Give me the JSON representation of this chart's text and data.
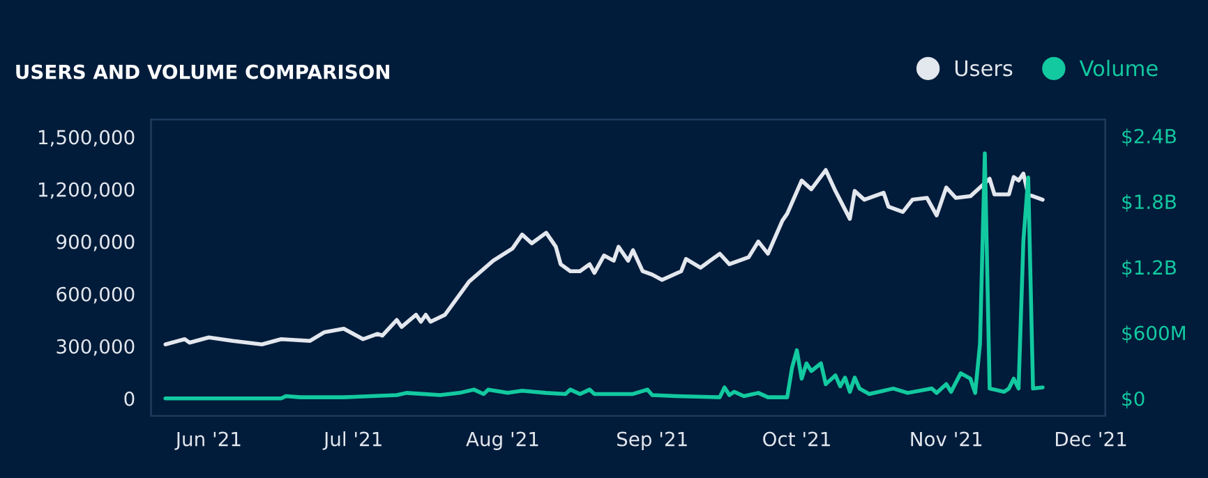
{
  "chart_data": {
    "type": "line",
    "title": "USERS AND VOLUME COMPARISON",
    "xlim": [
      "2021-05-20",
      "2021-12-04"
    ],
    "xticks": [
      {
        "value": "2021-06-01",
        "label": "Jun '21"
      },
      {
        "value": "2021-07-01",
        "label": "Jul '21"
      },
      {
        "value": "2021-08-01",
        "label": "Aug '21"
      },
      {
        "value": "2021-09-01",
        "label": "Sep '21"
      },
      {
        "value": "2021-10-01",
        "label": "Oct '21"
      },
      {
        "value": "2021-11-01",
        "label": "Nov '21"
      },
      {
        "value": "2021-12-01",
        "label": "Dec '21"
      }
    ],
    "ylim": [
      -100000,
      1600000
    ],
    "yticks": [
      {
        "value": 0,
        "label": "0"
      },
      {
        "value": 300000,
        "label": "300,000"
      },
      {
        "value": 600000,
        "label": "600,000"
      },
      {
        "value": 900000,
        "label": "900,000"
      },
      {
        "value": 1200000,
        "label": "1,200,000"
      },
      {
        "value": 1500000,
        "label": "1,500,000"
      }
    ],
    "y2lim": [
      -160000000,
      2550000000
    ],
    "y2ticks": [
      {
        "value": 0,
        "label": "$0"
      },
      {
        "value": 600000000,
        "label": "$600M"
      },
      {
        "value": 1200000000,
        "label": "$1.2B"
      },
      {
        "value": 1800000000,
        "label": "$1.8B"
      },
      {
        "value": 2400000000,
        "label": "$2.4B"
      }
    ],
    "grid": false,
    "legend": "top right",
    "marker": "none",
    "line_style": "solid",
    "series": [
      {
        "name": "Users",
        "color": "#e3e7ee",
        "axis": "y",
        "x": [
          "2021-05-23",
          "2021-05-27",
          "2021-05-28",
          "2021-06-01",
          "2021-06-06",
          "2021-06-12",
          "2021-06-16",
          "2021-06-22",
          "2021-06-25",
          "2021-06-29",
          "2021-07-03",
          "2021-07-06",
          "2021-07-07",
          "2021-07-10",
          "2021-07-11",
          "2021-07-14",
          "2021-07-15",
          "2021-07-16",
          "2021-07-17",
          "2021-07-20",
          "2021-07-25",
          "2021-07-30",
          "2021-08-03",
          "2021-08-05",
          "2021-08-07",
          "2021-08-10",
          "2021-08-12",
          "2021-08-13",
          "2021-08-15",
          "2021-08-17",
          "2021-08-19",
          "2021-08-20",
          "2021-08-22",
          "2021-08-24",
          "2021-08-25",
          "2021-08-27",
          "2021-08-28",
          "2021-08-30",
          "2021-09-01",
          "2021-09-03",
          "2021-09-07",
          "2021-09-08",
          "2021-09-11",
          "2021-09-15",
          "2021-09-17",
          "2021-09-21",
          "2021-09-23",
          "2021-09-25",
          "2021-09-28",
          "2021-09-29",
          "2021-10-02",
          "2021-10-04",
          "2021-10-07",
          "2021-10-09",
          "2021-10-12",
          "2021-10-13",
          "2021-10-15",
          "2021-10-19",
          "2021-10-20",
          "2021-10-23",
          "2021-10-25",
          "2021-10-28",
          "2021-10-30",
          "2021-11-01",
          "2021-11-03",
          "2021-11-06",
          "2021-11-10",
          "2021-11-11",
          "2021-11-14",
          "2021-11-15",
          "2021-11-16",
          "2021-11-17",
          "2021-11-18",
          "2021-11-21"
        ],
        "values": [
          310000,
          340000,
          320000,
          350000,
          330000,
          310000,
          340000,
          330000,
          380000,
          400000,
          340000,
          370000,
          360000,
          450000,
          410000,
          480000,
          440000,
          480000,
          440000,
          480000,
          670000,
          790000,
          860000,
          940000,
          890000,
          950000,
          870000,
          770000,
          730000,
          730000,
          770000,
          720000,
          820000,
          790000,
          870000,
          790000,
          850000,
          730000,
          710000,
          680000,
          730000,
          800000,
          750000,
          830000,
          770000,
          810000,
          900000,
          830000,
          1020000,
          1060000,
          1250000,
          1200000,
          1310000,
          1190000,
          1030000,
          1190000,
          1140000,
          1180000,
          1100000,
          1070000,
          1140000,
          1150000,
          1050000,
          1210000,
          1150000,
          1160000,
          1260000,
          1170000,
          1170000,
          1270000,
          1250000,
          1290000,
          1170000,
          1140000
        ]
      },
      {
        "name": "Volume",
        "color": "#13c9a0",
        "axis": "y2",
        "x": [
          "2021-05-23",
          "2021-06-16",
          "2021-06-17",
          "2021-06-20",
          "2021-06-29",
          "2021-07-10",
          "2021-07-12",
          "2021-07-19",
          "2021-07-23",
          "2021-07-26",
          "2021-07-28",
          "2021-07-29",
          "2021-08-02",
          "2021-08-05",
          "2021-08-10",
          "2021-08-14",
          "2021-08-15",
          "2021-08-17",
          "2021-08-19",
          "2021-08-20",
          "2021-08-28",
          "2021-08-31",
          "2021-09-01",
          "2021-09-06",
          "2021-09-15",
          "2021-09-16",
          "2021-09-17",
          "2021-09-18",
          "2021-09-20",
          "2021-09-23",
          "2021-09-25",
          "2021-09-29",
          "2021-09-30",
          "2021-10-01",
          "2021-10-02",
          "2021-10-03",
          "2021-10-04",
          "2021-10-06",
          "2021-10-07",
          "2021-10-09",
          "2021-10-10",
          "2021-10-11",
          "2021-10-12",
          "2021-10-13",
          "2021-10-14",
          "2021-10-16",
          "2021-10-21",
          "2021-10-24",
          "2021-10-29",
          "2021-10-30",
          "2021-11-01",
          "2021-11-02",
          "2021-11-04",
          "2021-11-06",
          "2021-11-07",
          "2021-11-08",
          "2021-11-09",
          "2021-11-10",
          "2021-11-13",
          "2021-11-14",
          "2021-11-15",
          "2021-11-16",
          "2021-11-17",
          "2021-11-18",
          "2021-11-19",
          "2021-11-21"
        ],
        "values": [
          0,
          0,
          20000000,
          10000000,
          10000000,
          30000000,
          50000000,
          30000000,
          50000000,
          80000000,
          40000000,
          80000000,
          50000000,
          70000000,
          50000000,
          40000000,
          80000000,
          40000000,
          80000000,
          40000000,
          40000000,
          80000000,
          30000000,
          20000000,
          10000000,
          100000000,
          30000000,
          60000000,
          20000000,
          50000000,
          10000000,
          10000000,
          280000000,
          440000000,
          180000000,
          320000000,
          250000000,
          320000000,
          130000000,
          210000000,
          110000000,
          190000000,
          60000000,
          190000000,
          90000000,
          40000000,
          90000000,
          50000000,
          90000000,
          50000000,
          130000000,
          60000000,
          230000000,
          180000000,
          50000000,
          500000000,
          2240000000,
          90000000,
          60000000,
          90000000,
          180000000,
          90000000,
          1440000000,
          2020000000,
          90000000,
          100000000
        ]
      }
    ]
  }
}
